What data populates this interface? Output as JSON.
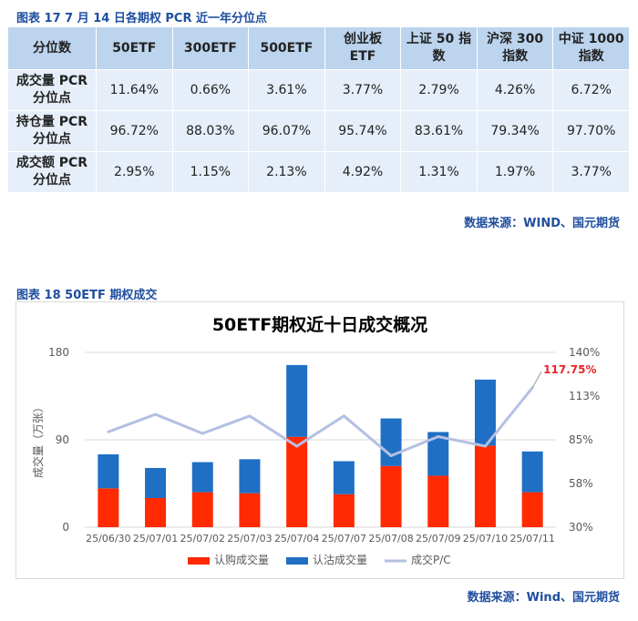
{
  "table_title": "图表 17  7 月 14 日各期权 PCR 近一年分位点",
  "table": {
    "headers": [
      "分位数",
      "50ETF",
      "300ETF",
      "500ETF",
      "创业板\nETF",
      "上证 50 指\n数",
      "沪深 300\n指数",
      "中证 1000\n指数"
    ],
    "rows": [
      {
        "label": "成交量 PCR\n分位点",
        "values": [
          "11.64%",
          "0.66%",
          "3.61%",
          "3.77%",
          "2.79%",
          "4.26%",
          "6.72%"
        ]
      },
      {
        "label": "持仓量 PCR\n分位点",
        "values": [
          "96.72%",
          "88.03%",
          "96.07%",
          "95.74%",
          "83.61%",
          "79.34%",
          "97.70%"
        ]
      },
      {
        "label": "成交额 PCR\n分位点",
        "values": [
          "2.95%",
          "1.15%",
          "2.13%",
          "4.92%",
          "1.31%",
          "1.97%",
          "3.77%"
        ]
      }
    ]
  },
  "source_1": "数据来源：WIND、国元期货",
  "chart_figure_title": "图表 18  50ETF 期权成交",
  "source_2": "数据来源：Wind、国元期货",
  "colors": {
    "call": "#ff2a00",
    "put": "#1f6fc5",
    "line": "#b4c0e3",
    "label_red": "#e8262a",
    "axis_text": "#595959"
  },
  "chart_data": {
    "type": "bar",
    "stacked": true,
    "title": "50ETF期权近十日成交概况",
    "categories": [
      "25/06/30",
      "25/07/01",
      "25/07/02",
      "25/07/03",
      "25/07/04",
      "25/07/07",
      "25/07/08",
      "25/07/09",
      "25/07/10",
      "25/07/11"
    ],
    "ylabel": "成交量（万张）",
    "ylim": [
      0,
      180
    ],
    "yticks": [
      "0",
      "90",
      "180"
    ],
    "y2lim": [
      30,
      140
    ],
    "y2ticks": [
      "30%",
      "58%",
      "85%",
      "113%",
      "140%"
    ],
    "series": [
      {
        "name": "认购成交量",
        "axis": "left",
        "values": [
          40,
          30,
          36,
          35,
          93,
          34,
          63,
          53,
          84,
          36
        ]
      },
      {
        "name": "认沽成交量",
        "axis": "left",
        "values": [
          35,
          31,
          31,
          35,
          74,
          34,
          49,
          45,
          68,
          42
        ]
      },
      {
        "name": "成交P/C",
        "axis": "right",
        "type": "line",
        "values": [
          90,
          101,
          89,
          100,
          81,
          100,
          75,
          87,
          81,
          117.75
        ]
      }
    ],
    "annotation": {
      "text": "117.75%",
      "index": 9
    },
    "legend_position": "bottom",
    "grid": true
  }
}
